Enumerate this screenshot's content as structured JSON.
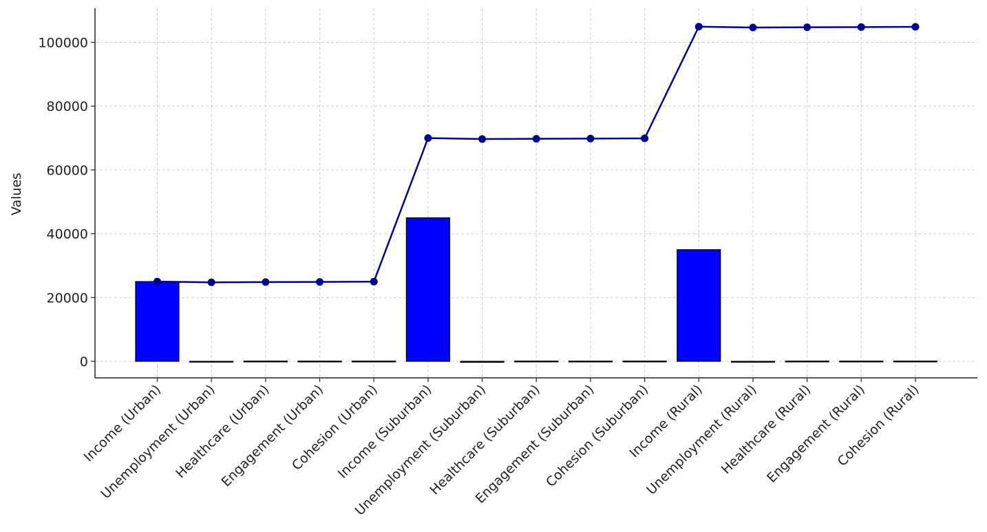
{
  "chart_data": {
    "type": "bar",
    "title": "",
    "xlabel": "",
    "ylabel": "Values",
    "ylim": [
      -5000,
      112000
    ],
    "yticks": [
      0,
      20000,
      40000,
      60000,
      80000,
      100000
    ],
    "ytick_labels": [
      "0",
      "20000",
      "40000",
      "60000",
      "80000",
      "100000"
    ],
    "grid": true,
    "categories": [
      "Income (Urban)",
      "Unemployment (Urban)",
      "Healthcare (Urban)",
      "Engagement (Urban)",
      "Cohesion (Urban)",
      "Income (Suburban)",
      "Unemployment (Suburban)",
      "Healthcare (Suburban)",
      "Engagement (Suburban)",
      "Cohesion (Suburban)",
      "Income (Rural)",
      "Unemployment (Rural)",
      "Healthcare (Rural)",
      "Engagement (Rural)",
      "Cohesion (Rural)"
    ],
    "series": [
      {
        "type": "bar",
        "color": "#0000ff",
        "values": [
          25000,
          -250,
          80,
          70,
          75,
          45000,
          -300,
          82,
          68,
          80,
          35000,
          -270,
          78,
          72,
          78
        ]
      },
      {
        "type": "line",
        "color": "#00008b",
        "values": [
          25000,
          24750,
          24830,
          24900,
          24975,
          69975,
          69675,
          69757,
          69825,
          69905,
          104905,
          104635,
          104713,
          104785,
          104863
        ]
      }
    ]
  }
}
